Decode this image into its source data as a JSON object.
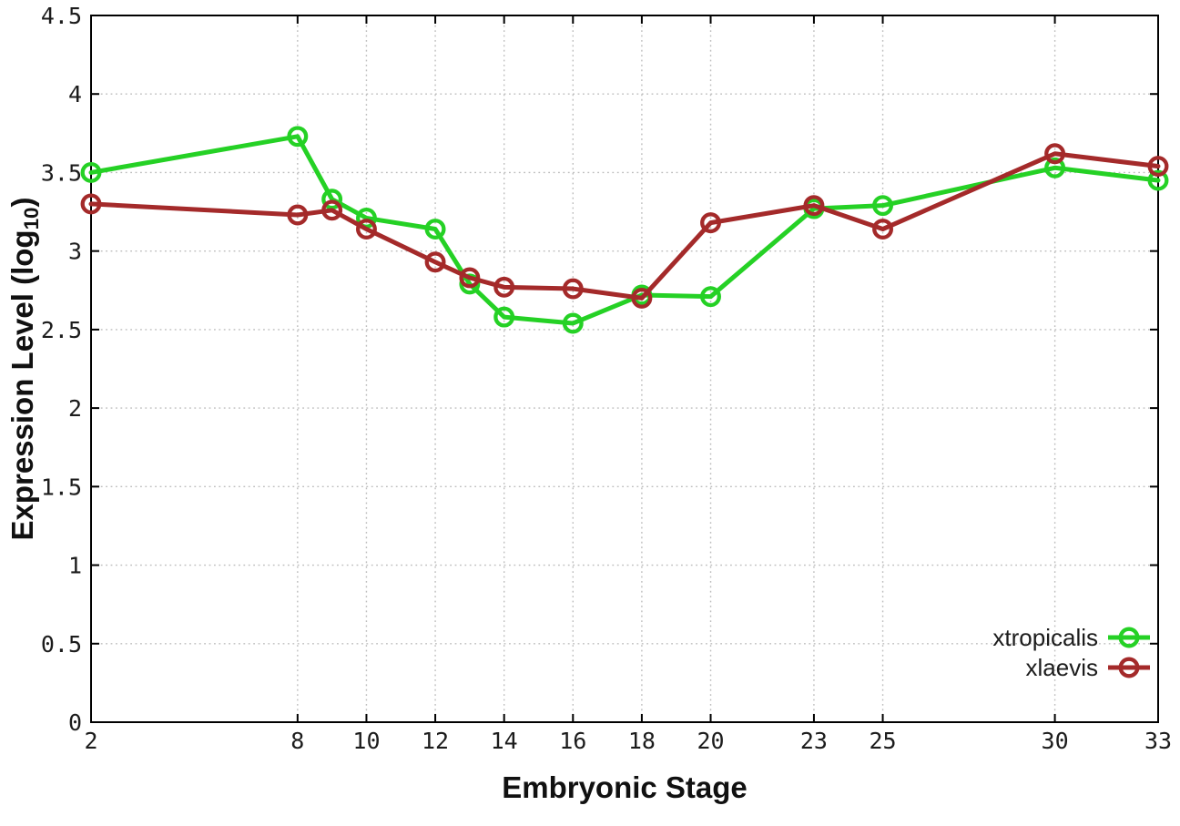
{
  "axes": {
    "x_label": "Embryonic Stage",
    "y_label_prefix": "Expression Level (log",
    "y_label_sub": "10",
    "y_label_suffix": ")"
  },
  "legend": {
    "position": "bottom-right",
    "entries": [
      {
        "label": "xtropicalis",
        "color": "#25d125"
      },
      {
        "label": "xlaevis",
        "color": "#a42a2a"
      }
    ]
  },
  "chart_data": {
    "type": "line",
    "xlabel": "Embryonic Stage",
    "ylabel": "Expression Level (log10)",
    "x": [
      2,
      8,
      9,
      10,
      12,
      13,
      14,
      16,
      18,
      20,
      23,
      25,
      30,
      33
    ],
    "series": [
      {
        "name": "xtropicalis",
        "color": "#25d125",
        "values": [
          3.5,
          3.73,
          3.33,
          3.21,
          3.14,
          2.79,
          2.58,
          2.54,
          2.72,
          2.71,
          3.27,
          3.29,
          3.53,
          3.45
        ]
      },
      {
        "name": "xlaevis",
        "color": "#a42a2a",
        "values": [
          3.3,
          3.23,
          3.26,
          3.14,
          2.93,
          2.83,
          2.77,
          2.76,
          2.7,
          3.18,
          3.29,
          3.14,
          3.62,
          3.54
        ]
      }
    ],
    "xlim": [
      2,
      33
    ],
    "ylim": [
      0,
      4.5
    ],
    "x_ticks": [
      2,
      8,
      10,
      12,
      14,
      16,
      18,
      20,
      23,
      25,
      30,
      33
    ],
    "y_ticks": [
      0,
      0.5,
      1,
      1.5,
      2,
      2.5,
      3,
      3.5,
      4,
      4.5
    ],
    "y_tick_labels": [
      "0",
      "0.5",
      "1",
      "1.5",
      "2",
      "2.5",
      "3",
      "3.5",
      "4",
      "4.5"
    ],
    "grid": true,
    "legend_position": "bottom-right",
    "marker": "open-circle",
    "grid_color": "#bdbdbd",
    "border_color": "#000000"
  }
}
